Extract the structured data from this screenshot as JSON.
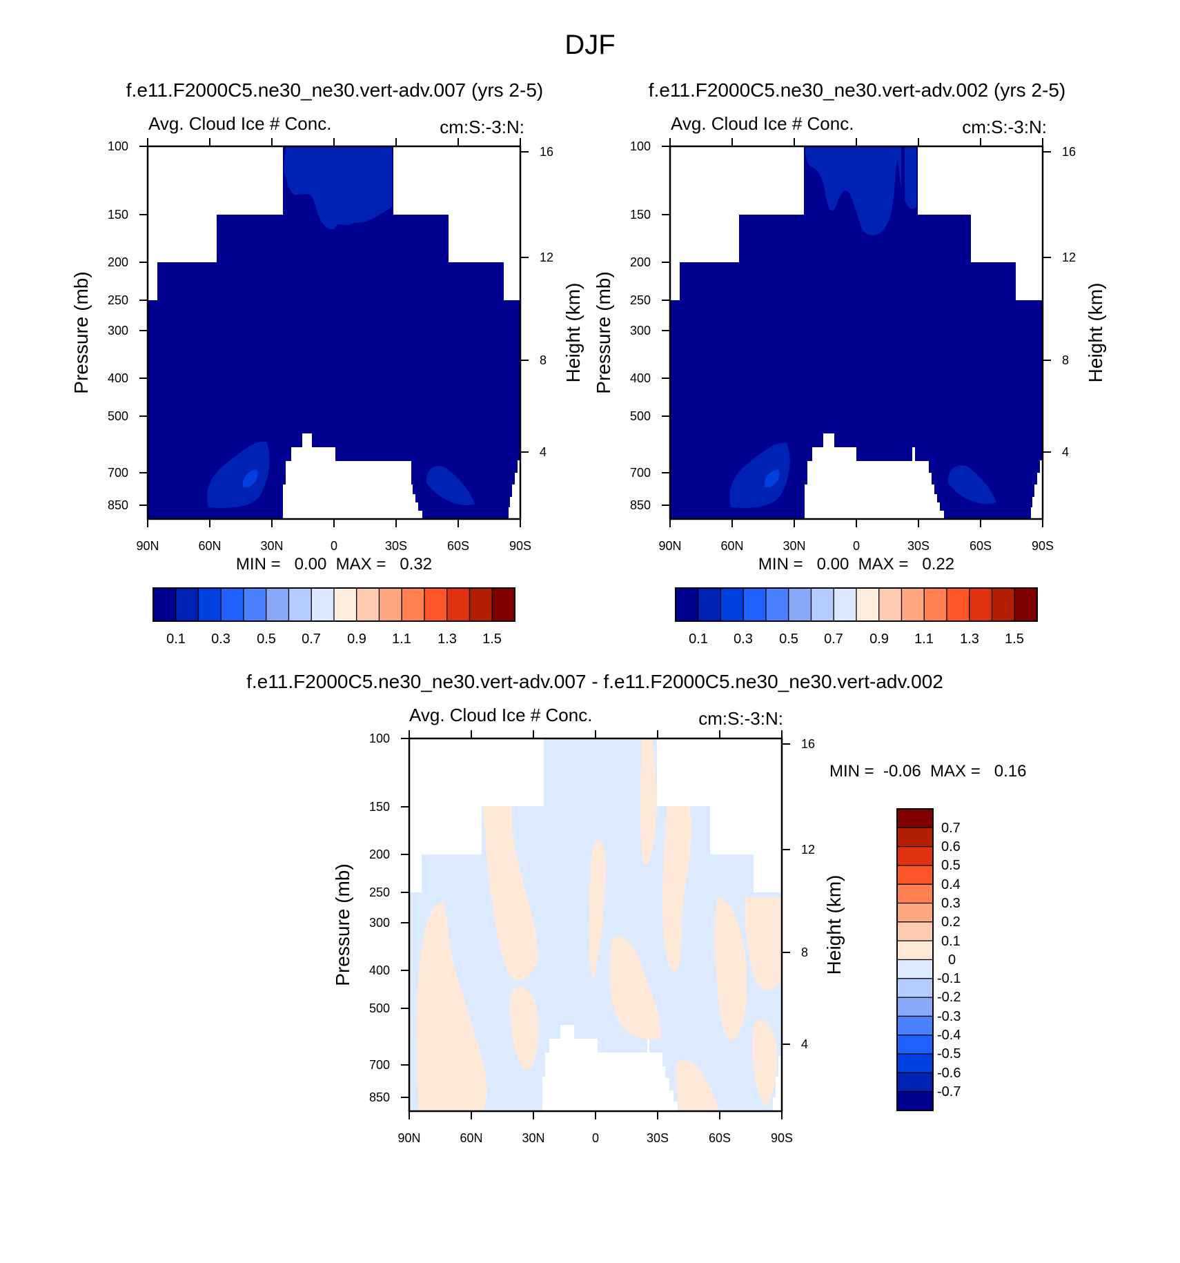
{
  "page_title": "DJF",
  "chart_data": [
    {
      "type": "heatmap",
      "panel": "top-left",
      "case_title": "f.e11.F2000C5.ne30_ne30.vert-adv.007 (yrs 2-5)",
      "left_string": "Avg. Cloud Ice # Conc.",
      "right_string": "cm:S:-3:N:",
      "ylabel": "Pressure (mb)",
      "ylabel_right": "Height (km)",
      "x_ticks": [
        "90N",
        "60N",
        "30N",
        "0",
        "30S",
        "60S",
        "90S"
      ],
      "y_ticks": [
        "100",
        "150",
        "200",
        "250",
        "300",
        "400",
        "500",
        "700",
        "850"
      ],
      "y_ticks_right": [
        "16",
        "12",
        "8",
        "4"
      ],
      "min_max_text": "MIN =   0.00  MAX =   0.32",
      "min": 0.0,
      "max": 0.32,
      "colorbar_labels": [
        "0.1",
        "0.3",
        "0.5",
        "0.7",
        "0.9",
        "1.1",
        "1.3",
        "1.5"
      ]
    },
    {
      "type": "heatmap",
      "panel": "top-right",
      "case_title": "f.e11.F2000C5.ne30_ne30.vert-adv.002 (yrs 2-5)",
      "left_string": "Avg. Cloud Ice # Conc.",
      "right_string": "cm:S:-3:N:",
      "ylabel": "Pressure (mb)",
      "ylabel_right": "Height (km)",
      "x_ticks": [
        "90N",
        "60N",
        "30N",
        "0",
        "30S",
        "60S",
        "90S"
      ],
      "y_ticks": [
        "100",
        "150",
        "200",
        "250",
        "300",
        "400",
        "500",
        "700",
        "850"
      ],
      "y_ticks_right": [
        "16",
        "12",
        "8",
        "4"
      ],
      "min_max_text": "MIN =   0.00  MAX =   0.22",
      "min": 0.0,
      "max": 0.22,
      "colorbar_labels": [
        "0.1",
        "0.3",
        "0.5",
        "0.7",
        "0.9",
        "1.1",
        "1.3",
        "1.5"
      ]
    },
    {
      "type": "heatmap",
      "panel": "bottom-difference",
      "case_title": "f.e11.F2000C5.ne30_ne30.vert-adv.007 - f.e11.F2000C5.ne30_ne30.vert-adv.002",
      "left_string": "Avg. Cloud Ice # Conc.",
      "right_string": "cm:S:-3:N:",
      "ylabel": "Pressure (mb)",
      "ylabel_right": "Height (km)",
      "x_ticks": [
        "90N",
        "60N",
        "30N",
        "0",
        "30S",
        "60S",
        "90S"
      ],
      "y_ticks": [
        "100",
        "150",
        "200",
        "250",
        "300",
        "400",
        "500",
        "700",
        "850"
      ],
      "y_ticks_right": [
        "16",
        "12",
        "8",
        "4"
      ],
      "min_max_text": "MIN =  -0.06  MAX =   0.16",
      "min": -0.06,
      "max": 0.16,
      "colorbar_labels": [
        "0.7",
        "0.6",
        "0.5",
        "0.4",
        "0.3",
        "0.2",
        "0.1",
        "0",
        "-0.1",
        "-0.2",
        "-0.3",
        "-0.4",
        "-0.5",
        "-0.6",
        "-0.7"
      ]
    }
  ],
  "colors": {
    "abs_scale": [
      "#000090",
      "#0022b4",
      "#0040e0",
      "#2060ff",
      "#4880ff",
      "#88a8f8",
      "#b4ccff",
      "#dce8ff",
      "#ffeedd",
      "#ffcbb0",
      "#ffa880",
      "#ff8050",
      "#ff5428",
      "#e03210",
      "#b41e00",
      "#800000"
    ],
    "diff_scale": [
      "#800000",
      "#b41e00",
      "#e03210",
      "#ff5428",
      "#ff8050",
      "#ffa880",
      "#ffcbb0",
      "#ffe8d8",
      "#dceaff",
      "#b4ccff",
      "#88a8f8",
      "#4880ff",
      "#2060ff",
      "#0040e0",
      "#0022b4",
      "#000090"
    ],
    "base_dark": "#000090",
    "mid_dark": "#0022b4",
    "diff_pos": "#ffe8d8",
    "diff_neg": "#dceaff"
  }
}
